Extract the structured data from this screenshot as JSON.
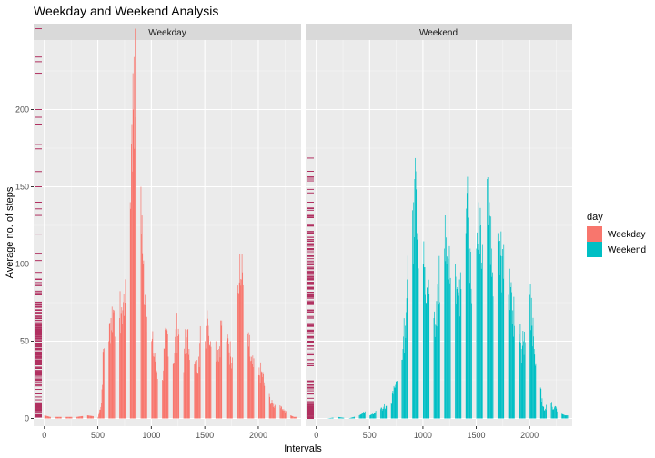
{
  "title": "Weekday and Weekend Analysis",
  "xlabel": "Intervals",
  "ylabel": "Average no. of steps",
  "legend": {
    "title": "day",
    "items": [
      {
        "label": "Weekday",
        "color": "#F8766D"
      },
      {
        "label": "Weekend",
        "color": "#00BFC4"
      }
    ]
  },
  "rug_color": "#B03060",
  "chart_data": {
    "type": "bar",
    "title": "Weekday and Weekend Analysis",
    "xlabel": "Intervals",
    "ylabel": "Average no. of steps",
    "xlim": [
      -100,
      2400
    ],
    "ylim": [
      -5,
      245
    ],
    "xticks": [
      0,
      500,
      1000,
      1500,
      2000
    ],
    "yticks": [
      0,
      50,
      100,
      150,
      200
    ],
    "grid": true,
    "legend_position": "right",
    "facets": [
      "Weekday",
      "Weekend"
    ],
    "series": [
      {
        "name": "Weekday",
        "color": "#F8766D",
        "points": [
          [
            0,
            2
          ],
          [
            50,
            1
          ],
          [
            100,
            1
          ],
          [
            200,
            1
          ],
          [
            300,
            1
          ],
          [
            400,
            2
          ],
          [
            500,
            1
          ],
          [
            530,
            10
          ],
          [
            550,
            45
          ],
          [
            570,
            55
          ],
          [
            600,
            50
          ],
          [
            620,
            65
          ],
          [
            650,
            70
          ],
          [
            680,
            60
          ],
          [
            700,
            65
          ],
          [
            720,
            72
          ],
          [
            750,
            75
          ],
          [
            770,
            65
          ],
          [
            790,
            80
          ],
          [
            800,
            140
          ],
          [
            815,
            190
          ],
          [
            830,
            200
          ],
          [
            835,
            234
          ],
          [
            850,
            195
          ],
          [
            870,
            190
          ],
          [
            890,
            185
          ],
          [
            900,
            150
          ],
          [
            920,
            100
          ],
          [
            940,
            80
          ],
          [
            960,
            65
          ],
          [
            980,
            70
          ],
          [
            1000,
            50
          ],
          [
            1020,
            42
          ],
          [
            1050,
            30
          ],
          [
            1100,
            25
          ],
          [
            1120,
            45
          ],
          [
            1150,
            55
          ],
          [
            1180,
            40
          ],
          [
            1200,
            35
          ],
          [
            1230,
            55
          ],
          [
            1250,
            58
          ],
          [
            1280,
            45
          ],
          [
            1300,
            30
          ],
          [
            1320,
            55
          ],
          [
            1350,
            45
          ],
          [
            1380,
            50
          ],
          [
            1400,
            35
          ],
          [
            1420,
            30
          ],
          [
            1440,
            40
          ],
          [
            1460,
            55
          ],
          [
            1480,
            58
          ],
          [
            1500,
            50
          ],
          [
            1520,
            70
          ],
          [
            1530,
            60
          ],
          [
            1550,
            50
          ],
          [
            1580,
            90
          ],
          [
            1600,
            50
          ],
          [
            1630,
            45
          ],
          [
            1650,
            60
          ],
          [
            1680,
            40
          ],
          [
            1700,
            50
          ],
          [
            1720,
            48
          ],
          [
            1740,
            40
          ],
          [
            1760,
            45
          ],
          [
            1780,
            60
          ],
          [
            1800,
            80
          ],
          [
            1820,
            88
          ],
          [
            1840,
            90
          ],
          [
            1860,
            85
          ],
          [
            1880,
            70
          ],
          [
            1900,
            55
          ],
          [
            1920,
            40
          ],
          [
            1940,
            35
          ],
          [
            1960,
            30
          ],
          [
            1980,
            25
          ],
          [
            2000,
            28
          ],
          [
            2030,
            30
          ],
          [
            2060,
            20
          ],
          [
            2090,
            15
          ],
          [
            2120,
            10
          ],
          [
            2150,
            8
          ],
          [
            2180,
            12
          ],
          [
            2210,
            8
          ],
          [
            2240,
            5
          ],
          [
            2270,
            3
          ],
          [
            2300,
            2
          ],
          [
            2330,
            1
          ]
        ]
      },
      {
        "name": "Weekend",
        "color": "#00BFC4",
        "points": [
          [
            0,
            0
          ],
          [
            100,
            0
          ],
          [
            200,
            1
          ],
          [
            300,
            0
          ],
          [
            400,
            2
          ],
          [
            450,
            4
          ],
          [
            500,
            2
          ],
          [
            550,
            4
          ],
          [
            600,
            6
          ],
          [
            650,
            8
          ],
          [
            700,
            10
          ],
          [
            730,
            20
          ],
          [
            760,
            25
          ],
          [
            790,
            35
          ],
          [
            810,
            45
          ],
          [
            830,
            60
          ],
          [
            850,
            90
          ],
          [
            870,
            130
          ],
          [
            880,
            145
          ],
          [
            890,
            110
          ],
          [
            910,
            140
          ],
          [
            920,
            155
          ],
          [
            930,
            160
          ],
          [
            945,
            120
          ],
          [
            960,
            90
          ],
          [
            980,
            110
          ],
          [
            1000,
            100
          ],
          [
            1020,
            80
          ],
          [
            1040,
            85
          ],
          [
            1060,
            70
          ],
          [
            1080,
            80
          ],
          [
            1100,
            65
          ],
          [
            1120,
            60
          ],
          [
            1140,
            85
          ],
          [
            1160,
            105
          ],
          [
            1180,
            120
          ],
          [
            1200,
            110
          ],
          [
            1220,
            100
          ],
          [
            1240,
            90
          ],
          [
            1260,
            125
          ],
          [
            1280,
            110
          ],
          [
            1300,
            100
          ],
          [
            1320,
            85
          ],
          [
            1340,
            90
          ],
          [
            1360,
            80
          ],
          [
            1380,
            95
          ],
          [
            1400,
            120
          ],
          [
            1420,
            130
          ],
          [
            1440,
            110
          ],
          [
            1460,
            90
          ],
          [
            1480,
            100
          ],
          [
            1500,
            110
          ],
          [
            1520,
            140
          ],
          [
            1540,
            125
          ],
          [
            1560,
            120
          ],
          [
            1580,
            130
          ],
          [
            1600,
            155
          ],
          [
            1620,
            140
          ],
          [
            1640,
            110
          ],
          [
            1660,
            100
          ],
          [
            1680,
            110
          ],
          [
            1700,
            120
          ],
          [
            1720,
            115
          ],
          [
            1740,
            105
          ],
          [
            1760,
            95
          ],
          [
            1780,
            90
          ],
          [
            1800,
            80
          ],
          [
            1820,
            85
          ],
          [
            1840,
            70
          ],
          [
            1860,
            65
          ],
          [
            1880,
            60
          ],
          [
            1900,
            55
          ],
          [
            1920,
            45
          ],
          [
            1940,
            50
          ],
          [
            1960,
            60
          ],
          [
            1980,
            65
          ],
          [
            2000,
            80
          ],
          [
            2020,
            60
          ],
          [
            2040,
            45
          ],
          [
            2060,
            40
          ],
          [
            2080,
            25
          ],
          [
            2100,
            20
          ],
          [
            2120,
            8
          ],
          [
            2140,
            5
          ],
          [
            2160,
            8
          ],
          [
            2180,
            6
          ],
          [
            2200,
            10
          ],
          [
            2220,
            6
          ],
          [
            2240,
            8
          ],
          [
            2260,
            5
          ],
          [
            2280,
            8
          ],
          [
            2300,
            3
          ],
          [
            2330,
            2
          ]
        ]
      }
    ]
  }
}
